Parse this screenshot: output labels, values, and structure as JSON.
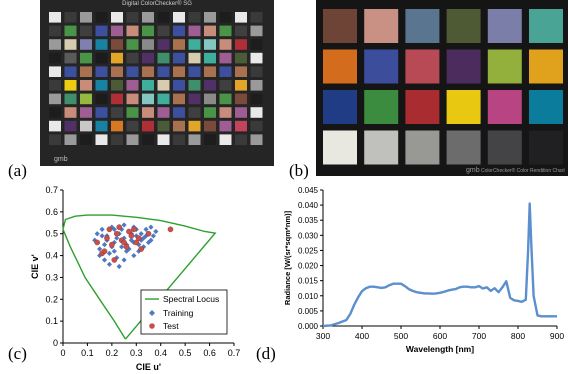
{
  "panels": {
    "a": "(a)",
    "b": "(b)",
    "c": "(c)",
    "d": "(d)"
  },
  "chart_a": {
    "title": "Digital ColorChecker® SG",
    "brand": "gmb",
    "rows": 10,
    "cols": 14
  },
  "chart_b": {
    "brand": "gmb",
    "caption": "ColorChecker® Color Rendition Chart",
    "patch_colors": [
      "#6e4436",
      "#c89184",
      "#5a7590",
      "#4d5a34",
      "#7a7ea8",
      "#4aa496",
      "#d46c1e",
      "#3c4d9c",
      "#b84a56",
      "#4c2c5c",
      "#94b03c",
      "#e0a21c",
      "#203c84",
      "#3c8c40",
      "#a82c30",
      "#e8c810",
      "#b84484",
      "#0c7c9c",
      "#e8e8e0",
      "#c0c0bc",
      "#989894",
      "#6c6c6c",
      "#444446",
      "#202022"
    ]
  },
  "chart_c": [
    {
      "type": "scatter",
      "xlabel": "CIE u'",
      "ylabel": "CIE v'",
      "xlim": [
        0,
        0.7
      ],
      "ylim": [
        0,
        0.7
      ],
      "xticks": [
        "0",
        "0.1",
        "0.2",
        "0.3",
        "0.4",
        "0.5",
        "0.6",
        "0.7"
      ],
      "yticks": [
        "0",
        "0.1",
        "0.2",
        "0.3",
        "0.4",
        "0.5",
        "0.6",
        "0.7"
      ],
      "legend_position": "bottom-right",
      "series": [
        {
          "name": "Spectral Locus",
          "kind": "line",
          "color": "#2ea02e",
          "x": [
            0.256,
            0.21,
            0.15,
            0.09,
            0.06,
            0.03,
            0.0,
            0.01,
            0.05,
            0.1,
            0.2,
            0.3,
            0.4,
            0.5,
            0.58,
            0.623,
            0.256
          ],
          "y": [
            0.018,
            0.1,
            0.2,
            0.3,
            0.37,
            0.44,
            0.52,
            0.565,
            0.58,
            0.585,
            0.585,
            0.575,
            0.56,
            0.535,
            0.51,
            0.503,
            0.018
          ]
        },
        {
          "name": "Training",
          "kind": "diamond",
          "color": "#4f79c0",
          "x": [
            0.13,
            0.14,
            0.15,
            0.16,
            0.17,
            0.18,
            0.19,
            0.2,
            0.21,
            0.22,
            0.23,
            0.24,
            0.25,
            0.26,
            0.27,
            0.28,
            0.29,
            0.3,
            0.31,
            0.32,
            0.33,
            0.34,
            0.35,
            0.36,
            0.37,
            0.38,
            0.15,
            0.17,
            0.19,
            0.21,
            0.23,
            0.25,
            0.27,
            0.29,
            0.31,
            0.33,
            0.18,
            0.2,
            0.22,
            0.24,
            0.26,
            0.28,
            0.3,
            0.32,
            0.34,
            0.36,
            0.16,
            0.21,
            0.25,
            0.29
          ],
          "y": [
            0.47,
            0.5,
            0.43,
            0.52,
            0.45,
            0.49,
            0.41,
            0.53,
            0.46,
            0.39,
            0.5,
            0.44,
            0.48,
            0.42,
            0.51,
            0.47,
            0.4,
            0.49,
            0.45,
            0.5,
            0.48,
            0.52,
            0.46,
            0.47,
            0.49,
            0.51,
            0.4,
            0.38,
            0.36,
            0.42,
            0.35,
            0.38,
            0.43,
            0.46,
            0.42,
            0.44,
            0.47,
            0.44,
            0.48,
            0.52,
            0.45,
            0.5,
            0.52,
            0.47,
            0.49,
            0.53,
            0.49,
            0.52,
            0.54,
            0.53
          ]
        },
        {
          "name": "Test",
          "kind": "circle",
          "color": "#c9504a",
          "x": [
            0.14,
            0.16,
            0.18,
            0.2,
            0.22,
            0.24,
            0.26,
            0.28,
            0.3,
            0.32,
            0.19,
            0.23,
            0.27,
            0.31,
            0.35,
            0.44,
            0.17,
            0.21,
            0.25,
            0.29
          ],
          "y": [
            0.46,
            0.41,
            0.48,
            0.45,
            0.5,
            0.47,
            0.44,
            0.49,
            0.46,
            0.43,
            0.52,
            0.53,
            0.51,
            0.48,
            0.5,
            0.52,
            0.42,
            0.38,
            0.46,
            0.52
          ]
        }
      ]
    },
    {
      "type": "line",
      "xlabel": "Wavelength [nm]",
      "ylabel": "Radiance [W/(sr*sqm*nm)]",
      "xlim": [
        300,
        900
      ],
      "ylim": [
        0,
        0.045
      ],
      "xticks": [
        "300",
        "400",
        "500",
        "600",
        "700",
        "800",
        "900"
      ],
      "yticks": [
        "0.000",
        "0.005",
        "0.010",
        "0.015",
        "0.020",
        "0.025",
        "0.030",
        "0.035",
        "0.040",
        "0.045"
      ],
      "series": [
        {
          "color": "#5b8fce",
          "x": [
            300,
            320,
            340,
            360,
            370,
            380,
            390,
            400,
            410,
            420,
            430,
            440,
            450,
            460,
            470,
            480,
            490,
            500,
            510,
            520,
            530,
            540,
            550,
            560,
            570,
            580,
            590,
            600,
            610,
            620,
            630,
            640,
            650,
            660,
            670,
            680,
            690,
            700,
            710,
            720,
            730,
            740,
            750,
            760,
            770,
            780,
            790,
            800,
            810,
            820,
            826,
            830,
            834,
            840,
            850,
            860,
            870,
            880,
            890,
            900
          ],
          "y": [
            0.0,
            0.0002,
            0.001,
            0.002,
            0.004,
            0.007,
            0.0095,
            0.0115,
            0.0125,
            0.013,
            0.013,
            0.0128,
            0.0126,
            0.0128,
            0.0135,
            0.014,
            0.014,
            0.014,
            0.0132,
            0.0122,
            0.0116,
            0.0112,
            0.011,
            0.0108,
            0.0108,
            0.0107,
            0.0108,
            0.011,
            0.0113,
            0.0117,
            0.012,
            0.0122,
            0.0128,
            0.013,
            0.013,
            0.0128,
            0.0128,
            0.0132,
            0.0124,
            0.0128,
            0.0116,
            0.0125,
            0.0112,
            0.0128,
            0.0148,
            0.0093,
            0.0085,
            0.0083,
            0.008,
            0.0087,
            0.025,
            0.0405,
            0.027,
            0.01,
            0.0035,
            0.0032,
            0.0032,
            0.0032,
            0.0032,
            0.0032
          ]
        }
      ]
    }
  ]
}
